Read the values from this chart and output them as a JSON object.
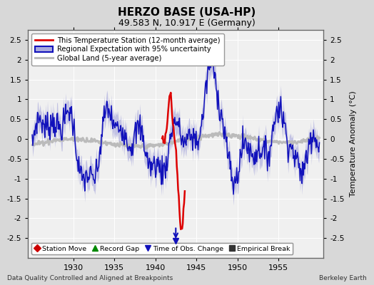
{
  "title": "HERZO BASE (USA-HP)",
  "subtitle": "49.583 N, 10.917 E (Germany)",
  "ylabel": "Temperature Anomaly (°C)",
  "xlabel_note": "Data Quality Controlled and Aligned at Breakpoints",
  "berkeley_earth": "Berkeley Earth",
  "ylim": [
    -3.0,
    2.75
  ],
  "xlim": [
    1924.5,
    1960.5
  ],
  "yticks": [
    -2.5,
    -2,
    -1.5,
    -1,
    -0.5,
    0,
    0.5,
    1,
    1.5,
    2,
    2.5
  ],
  "xticks": [
    1930,
    1935,
    1940,
    1945,
    1950,
    1955
  ],
  "bg_color": "#d8d8d8",
  "plot_bg_color": "#f0f0f0",
  "grid_color": "#ffffff",
  "station_color": "#dd0000",
  "regional_color": "#1111bb",
  "regional_fill_color": "#aaaadd",
  "global_color": "#bbbbbb",
  "obs_change_x": 1942.5,
  "obs_change_y": -2.75,
  "legend1_entries": [
    "This Temperature Station (12-month average)",
    "Regional Expectation with 95% uncertainty",
    "Global Land (5-year average)"
  ],
  "legend2_entries": [
    "Station Move",
    "Record Gap",
    "Time of Obs. Change",
    "Empirical Break"
  ]
}
